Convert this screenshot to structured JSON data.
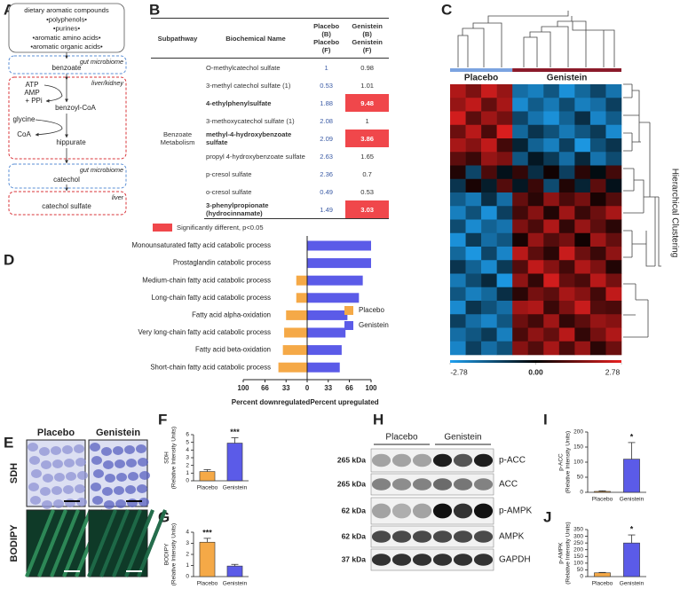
{
  "panel_labels": [
    "A",
    "B",
    "C",
    "D",
    "E",
    "F",
    "G",
    "H",
    "I",
    "J"
  ],
  "pathway": {
    "source": [
      "dietary aromatic compounds",
      "•polyphenols•",
      "•purines•",
      "•aromatic amino acids•",
      "•aromatic organic acids•"
    ],
    "compartments": [
      "gut microbiome",
      "liver/kidney",
      "gut microbiome",
      "liver"
    ],
    "metabolites": [
      "benzoate",
      "benzoyl-CoA",
      "hippurate",
      "catechol",
      "catechol sulfate"
    ],
    "cofactors": [
      "ATP",
      "AMP",
      "+ PPi",
      "glycine",
      "CoA"
    ]
  },
  "table": {
    "columns": [
      "Subpathway",
      "Biochemical Name",
      [
        "Placebo (B)",
        "Placebo (F)"
      ],
      [
        "Genistein (B)",
        "Genistein (F)"
      ]
    ],
    "subpathway": "Benzoate Metabolism",
    "rows": [
      {
        "name": "O-methylcatechol sulfate",
        "placebo": 1,
        "genistein": 0.98,
        "significant": false
      },
      {
        "name": "3-methyl catechol sulfate (1)",
        "placebo": 0.53,
        "genistein": 1.01,
        "significant": false
      },
      {
        "name": "4-ethylphenylsulfate",
        "placebo": 1.88,
        "genistein": 9.48,
        "significant": true
      },
      {
        "name": "3-methoxycatechol sulfate (1)",
        "placebo": 2.08,
        "genistein": 1,
        "significant": false
      },
      {
        "name": "methyl-4-hydroxybenzoate sulfate",
        "placebo": 2.09,
        "genistein": 3.86,
        "significant": true
      },
      {
        "name": "propyl 4-hydroxybenzoate sulfate",
        "placebo": 2.63,
        "genistein": 1.65,
        "significant": false
      },
      {
        "name": "p-cresol sulfate",
        "placebo": 2.36,
        "genistein": 0.7,
        "significant": false
      },
      {
        "name": "o-cresol sulfate",
        "placebo": 0.49,
        "genistein": 0.53,
        "significant": false
      },
      {
        "name": "3-phenylpropionate (hydrocinnamate)",
        "placebo": 1.49,
        "genistein": 3.03,
        "significant": true
      }
    ],
    "legend": "Significantly different, p<0.05",
    "highlight_color": "#f0474b"
  },
  "heatmap": {
    "groups": [
      "Placebo",
      "Genistein"
    ],
    "group_colors": [
      "#7ba3e0",
      "#8b1a2a"
    ],
    "group_columns": [
      4,
      7
    ],
    "side_label": "Hierarchical Clustering",
    "colorscale": {
      "lim": [
        -2.78,
        2.78
      ],
      "ticks": [
        -2.78,
        {
          "value": 0,
          "label": "0.00"
        },
        2.78
      ],
      "colors": [
        "#1ea0f0",
        "#000000",
        "#e82020"
      ]
    },
    "values": [
      [
        2.1,
        1.5,
        2.4,
        1.8,
        -1.9,
        -2.2,
        -1.5,
        -2.5,
        -1.8,
        -1.2,
        -2.0
      ],
      [
        1.8,
        2.3,
        1.2,
        2.0,
        -2.4,
        -1.6,
        -2.1,
        -1.3,
        -2.2,
        -1.9,
        -1.1
      ],
      [
        2.5,
        1.1,
        1.9,
        1.4,
        -1.2,
        -2.0,
        -2.5,
        -1.7,
        -0.8,
        -2.3,
        -1.6
      ],
      [
        1.3,
        2.2,
        0.9,
        2.6,
        -1.8,
        -0.9,
        -1.4,
        -2.1,
        -1.5,
        -1.0,
        -2.4
      ],
      [
        2.0,
        1.6,
        2.3,
        0.8,
        -0.6,
        -1.7,
        -2.2,
        -1.1,
        -2.6,
        -1.4,
        -0.9
      ],
      [
        1.1,
        0.7,
        1.8,
        1.5,
        -1.5,
        -0.4,
        -1.0,
        -1.9,
        -0.7,
        -2.0,
        -1.3
      ],
      [
        0.4,
        -1.2,
        0.9,
        -0.3,
        0.6,
        -0.8,
        0.2,
        -1.1,
        0.5,
        -0.2,
        0.8
      ],
      [
        -0.9,
        0.3,
        -0.5,
        1.0,
        -0.4,
        0.7,
        -1.3,
        0.4,
        -0.6,
        1.1,
        -0.3
      ],
      [
        -1.6,
        -2.1,
        -0.8,
        -1.9,
        1.2,
        0.5,
        1.7,
        0.9,
        1.4,
        0.3,
        1.0
      ],
      [
        -2.2,
        -1.4,
        -2.5,
        -1.1,
        0.8,
        1.6,
        0.4,
        1.9,
        0.7,
        1.3,
        2.0
      ],
      [
        -1.3,
        -2.4,
        -1.7,
        -2.0,
        1.5,
        0.9,
        2.1,
        0.6,
        1.8,
        1.1,
        0.5
      ],
      [
        -2.5,
        -1.0,
        -1.9,
        -1.5,
        0.3,
        1.8,
        1.0,
        1.4,
        0.2,
        1.9,
        1.2
      ],
      [
        -1.8,
        -2.6,
        -1.2,
        -2.3,
        2.2,
        1.1,
        0.5,
        2.4,
        1.3,
        0.7,
        1.7
      ],
      [
        -0.9,
        -1.7,
        -2.4,
        -1.0,
        1.0,
        2.3,
        1.6,
        0.8,
        2.1,
        1.5,
        0.4
      ],
      [
        -2.1,
        -1.3,
        -0.7,
        -2.6,
        1.7,
        0.6,
        2.5,
        1.2,
        0.9,
        2.2,
        1.4
      ],
      [
        -1.5,
        -2.2,
        -1.8,
        -0.8,
        0.5,
        1.4,
        1.1,
        2.0,
        1.6,
        0.8,
        2.3
      ],
      [
        -2.4,
        -0.9,
        -1.4,
        -1.9,
        1.9,
        2.1,
        0.7,
        1.5,
        2.4,
        1.0,
        0.9
      ],
      [
        -1.1,
        -1.9,
        -2.3,
        -1.5,
        1.3,
        0.8,
        1.9,
        0.6,
        1.1,
        1.8,
        1.6
      ],
      [
        -1.9,
        -1.5,
        -1.0,
        -2.2,
        0.9,
        1.7,
        1.2,
        2.2,
        0.6,
        1.4,
        2.1
      ],
      [
        -2.3,
        -1.1,
        -1.9,
        -1.4,
        1.6,
        1.0,
        2.0,
        0.9,
        1.8,
        0.5,
        1.3
      ]
    ]
  },
  "chart_data": [
    {
      "type": "diverging-bar",
      "categories": [
        "Monounsaturated fatty acid catabolic process",
        "Prostaglandin catabolic process",
        "Medium-chain fatty acid catabolic process",
        "Long-chain fatty acid catabolic process",
        "Fatty acid alpha-oxidation",
        "Very long-chain fatty acid catabolic process",
        "Fatty acid beta-oxidation",
        "Short-chain fatty acid catabolic process"
      ],
      "series": [
        {
          "name": "Placebo",
          "color": "#f5a947",
          "values": [
            0,
            0,
            -17,
            -17,
            -33,
            -36,
            -38,
            -45
          ]
        },
        {
          "name": "Genistein",
          "color": "#5b5be8",
          "values": [
            100,
            100,
            87,
            81,
            63,
            60,
            54,
            51
          ]
        }
      ],
      "xlim": [
        -100,
        100
      ],
      "xticks": [
        {
          "value": -100,
          "label": "100"
        },
        {
          "value": -66,
          "label": "66"
        },
        {
          "value": -33,
          "label": "33"
        },
        0,
        33,
        66,
        100
      ],
      "xlabel": [
        "Percent downregulated",
        "Percent upregulated"
      ]
    },
    {
      "type": "bar",
      "ylabel": [
        "SDH",
        "(Relative Intensity Units)"
      ],
      "categories": [
        "Placebo",
        "Genistein"
      ],
      "values": [
        1.2,
        4.9
      ],
      "errors": [
        0.25,
        0.7
      ],
      "colors": [
        "#f5a947",
        "#5b5be8"
      ],
      "ylim": [
        0,
        6
      ],
      "yticks": [
        0,
        1,
        2,
        3,
        4,
        5,
        6
      ],
      "annotation": "***"
    },
    {
      "type": "bar",
      "ylabel": [
        "BODIPY",
        "(Relative Intensity Units)"
      ],
      "categories": [
        "Placebo",
        "Genistein"
      ],
      "values": [
        3.1,
        0.95
      ],
      "errors": [
        0.35,
        0.15
      ],
      "colors": [
        "#f5a947",
        "#5b5be8"
      ],
      "ylim": [
        0,
        4
      ],
      "yticks": [
        0,
        1,
        2,
        3,
        4
      ],
      "annotation": "***"
    },
    {
      "type": "bar",
      "ylabel": [
        "p-ACC",
        "(Relative Intensity Units)"
      ],
      "categories": [
        "Placebo",
        "Genistein"
      ],
      "values": [
        3,
        110
      ],
      "errors": [
        2,
        55
      ],
      "colors": [
        "#f5a947",
        "#5b5be8"
      ],
      "ylim": [
        0,
        200
      ],
      "yticks": [
        0,
        50,
        100,
        150,
        200
      ],
      "annotation": "*"
    },
    {
      "type": "bar",
      "ylabel": [
        "p-AMPK",
        "(Relative Intensity Units)"
      ],
      "categories": [
        "Placebo",
        "Genistein"
      ],
      "values": [
        28,
        250
      ],
      "errors": [
        3,
        60
      ],
      "colors": [
        "#f5a947",
        "#5b5be8"
      ],
      "ylim": [
        0,
        350
      ],
      "yticks": [
        0,
        50,
        100,
        150,
        200,
        250,
        300,
        350
      ],
      "annotation": "*"
    }
  ],
  "micrographs": {
    "columns": [
      "Placebo",
      "Genistein"
    ],
    "rows": [
      "SDH",
      "BODIPY"
    ]
  },
  "western": {
    "groups": [
      "Placebo",
      "Genistein"
    ],
    "rows": [
      {
        "size": "265 kDa",
        "protein": "p-ACC"
      },
      {
        "size": "265 kDa",
        "protein": "ACC"
      },
      {
        "size": "62 kDa",
        "protein": "p-AMPK"
      },
      {
        "size": "62 kDa",
        "protein": "AMPK"
      },
      {
        "size": "37 kDa",
        "protein": "GAPDH"
      }
    ]
  }
}
